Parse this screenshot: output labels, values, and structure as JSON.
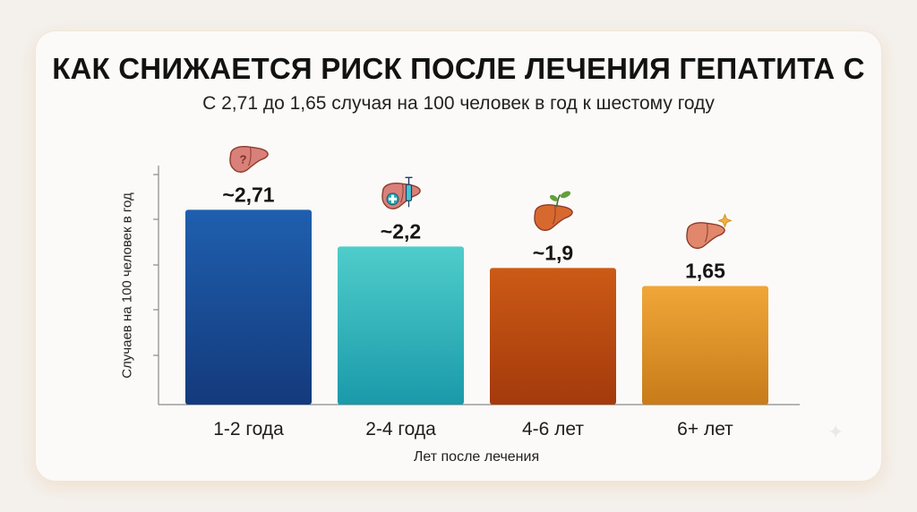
{
  "title": "КАК СНИЖАЕТСЯ РИСК ПОСЛЕ ЛЕЧЕНИЯ ГЕПАТИТА С",
  "subtitle": "С 2,71 до 1,65 случая на 100 человек в год к шестому году",
  "chart_data": {
    "type": "bar",
    "categories": [
      "1-2 года",
      "2-4 года",
      "4-6 лет",
      "6+ лет"
    ],
    "values": [
      2.71,
      2.2,
      1.9,
      1.65
    ],
    "data_labels": [
      "~2,71",
      "~2,2",
      "~1,9",
      "1,65"
    ],
    "xlabel": "Лет после лечения",
    "ylabel": "Случаев на 100 человек в год",
    "ylim": [
      0,
      3.2
    ],
    "grid": false,
    "legend": "none",
    "bar_colors": [
      [
        "#1f5fae",
        "#143a7c"
      ],
      [
        "#4fcdcb",
        "#1a9aa9"
      ],
      [
        "#cc5a16",
        "#a43a0c"
      ],
      [
        "#f1a638",
        "#c87c1a"
      ]
    ],
    "bar_icons": [
      "liver-question-icon",
      "liver-syringe-icon",
      "liver-sprout-icon",
      "liver-sparkle-icon"
    ]
  }
}
